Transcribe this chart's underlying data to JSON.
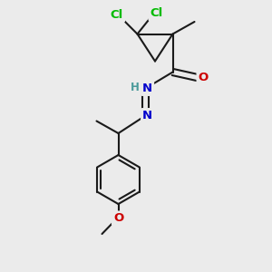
{
  "background_color": "#ebebeb",
  "bond_color": "#1a1a1a",
  "bond_width": 1.5,
  "atom_colors": {
    "Cl": "#00bb00",
    "N": "#0000cc",
    "O": "#cc0000",
    "C": "#1a1a1a",
    "H": "#4a9a9a"
  },
  "font_size_atoms": 9.5,
  "font_size_H": 8.5,
  "figsize": [
    3.0,
    3.0
  ],
  "dpi": 100,
  "xlim": [
    0,
    10
  ],
  "ylim": [
    0,
    10
  ]
}
